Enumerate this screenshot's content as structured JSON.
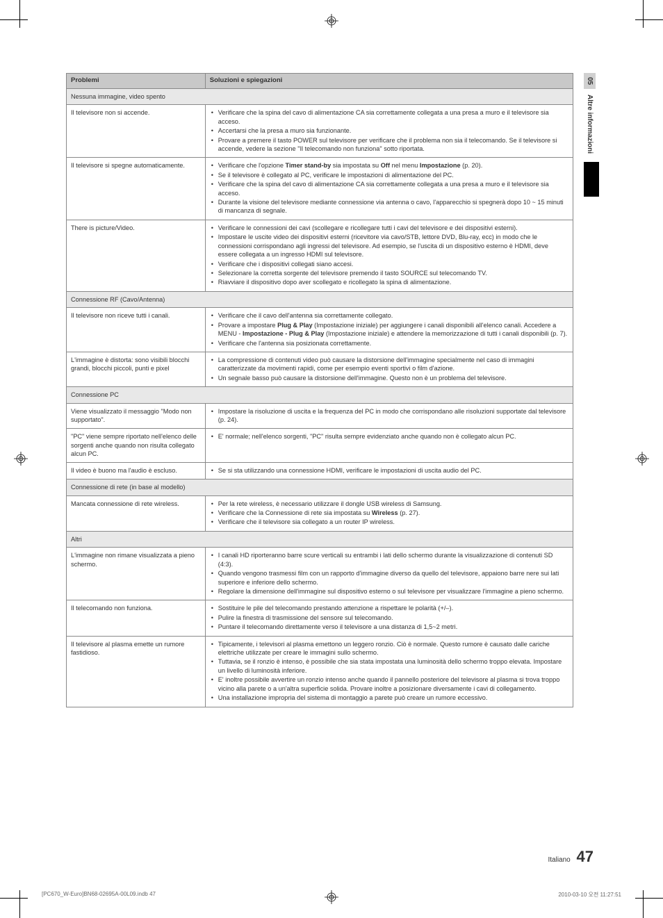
{
  "sidebar": {
    "num": "05",
    "label": "Altre informazioni"
  },
  "headers": {
    "col1": "Problemi",
    "col2": "Soluzioni e spiegazioni"
  },
  "sections": [
    {
      "title": "Nessuna immagine, video spento",
      "rows": [
        {
          "p": "Il televisore non si accende.",
          "s": [
            "Verificare che la spina del cavo di alimentazione CA sia correttamente collegata a una presa a muro e il televisore sia acceso.",
            "Accertarsi che la presa a muro sia funzionante.",
            "Provare a premere il tasto POWER sul televisore per verificare che il problema non sia il telecomando. Se il televisore si accende, vedere la sezione \"Il telecomando non funziona\" sotto riportata."
          ]
        },
        {
          "p": "Il televisore si spegne automaticamente.",
          "s": [
            "Verificare che l'opzione <b>Timer stand-by</b> sia impostata su <b>Off</b> nel menu <b>Impostazione</b> (p. 20).",
            "Se il televisore è collegato al PC, verificare le impostazioni di alimentazione del PC.",
            "Verificare che la spina del cavo di alimentazione CA sia correttamente collegata a una presa a muro e il televisore sia acceso.",
            "Durante la visione del televisore mediante connessione via antenna o cavo, l'apparecchio si spegnerà dopo 10 ~ 15 minuti di mancanza di segnale."
          ]
        },
        {
          "p": "There is picture/Video.",
          "s": [
            "Verificare le connessioni dei cavi (scollegare e ricollegare tutti i cavi del televisore e dei dispositivi esterni).",
            "Impostare le uscite video dei dispositivi esterni (ricevitore via cavo/STB, lettore DVD, Blu-ray, ecc) in modo che le connessioni corrispondano agli ingressi del televisore. Ad esempio, se l'uscita di un dispositivo esterno è HDMI, deve essere collegata a un ingresso HDMI sul televisore.",
            "Verificare che i dispositivi collegati siano accesi.",
            "Selezionare la corretta sorgente del televisore premendo il tasto SOURCE sul telecomando TV.",
            "Riavviare il dispositivo dopo aver scollegato e ricollegato la spina di alimentazione."
          ]
        }
      ]
    },
    {
      "title": "Connessione RF (Cavo/Antenna)",
      "rows": [
        {
          "p": "Il televisore non riceve tutti i canali.",
          "s": [
            "Verificare che il cavo dell'antenna sia correttamente collegato.",
            "Provare a impostare <b>Plug & Play</b> (Impostazione iniziale) per aggiungere i canali disponibili all'elenco canali. Accedere a MENU - <b>Impostazione - Plug & Play</b> (Impostazione iniziale) e attendere la memorizzazione di tutti i canali disponibili (p. 7).",
            "Verificare che l'antenna sia posizionata correttamente."
          ]
        },
        {
          "p": "L'immagine è distorta: sono visibili blocchi grandi, blocchi piccoli, punti e pixel",
          "s": [
            "La compressione di contenuti video può causare la distorsione dell'immagine specialmente nel caso di immagini caratterizzate da movimenti rapidi, come per esempio eventi sportivi o film d'azione.",
            "Un segnale basso può causare la distorsione dell'immagine. Questo non è un problema del televisore."
          ]
        }
      ]
    },
    {
      "title": "Connessione PC",
      "rows": [
        {
          "p": "Viene visualizzato il messaggio \"Modo non supportato\".",
          "s": [
            "Impostare la risoluzione di uscita e la frequenza del PC in modo che corrispondano alle risoluzioni supportate dal televisore (p. 24)."
          ]
        },
        {
          "p": "\"PC\" viene sempre riportato nell'elenco delle sorgenti anche quando non risulta collegato alcun PC.",
          "s": [
            "E' normale; nell'elenco sorgenti, \"PC\" risulta sempre evidenziato anche quando non è collegato alcun PC."
          ]
        },
        {
          "p": "Il video è buono ma l'audio è escluso.",
          "s": [
            "Se si sta utilizzando una connessione HDMI, verificare le impostazioni di uscita audio del PC."
          ]
        }
      ]
    },
    {
      "title": "Connessione di rete (in base al modello)",
      "rows": [
        {
          "p": "Mancata connessione di rete wireless.",
          "s": [
            "Per la rete wireless, è necessario utilizzare il dongle USB wireless di Samsung.",
            "Verificare che la Connessione di rete sia impostata su <b>Wireless</b> (p. 27).",
            "Verificare che il televisore sia collegato a un router IP wireless."
          ]
        }
      ]
    },
    {
      "title": "Altri",
      "rows": [
        {
          "p": "L'immagine non rimane visualizzata a pieno schermo.",
          "s": [
            "I canali HD riporteranno barre scure verticali su entrambi i lati dello schermo durante la visualizzazione di contenuti SD (4:3).",
            "Quando vengono trasmessi film con un rapporto d'immagine diverso da quello del televisore, appaiono barre nere sui lati superiore e inferiore dello schermo.",
            "Regolare la dimensione dell'immagine sul dispositivo esterno o sul televisore per visualizzare l'immagine a pieno schermo."
          ]
        },
        {
          "p": "Il telecomando non funziona.",
          "s": [
            "Sostituire le pile del telecomando prestando attenzione a rispettare le polarità (+/–).",
            "Pulire la finestra di trasmissione del sensore sul telecomando.",
            "Puntare il telecomando direttamente verso il televisore a una distanza di 1,5~2 metri."
          ]
        },
        {
          "p": "Il televisore al plasma emette un rumore fastidioso.",
          "s": [
            "Tipicamente, i televisori al plasma emettono un leggero ronzio. Ciò è normale. Questo rumore è causato dalle cariche elettriche utilizzate per creare le immagini sullo schermo.",
            "Tuttavia, se il ronzio è intenso, è possibile che sia stata impostata una luminosità dello schermo troppo elevata. Impostare un livello di luminosità inferiore.",
            "E' inoltre possibile avvertire un ronzio intenso anche quando il pannello posteriore del televisore al plasma si trova troppo vicino alla parete o a un'altra superficie solida. Provare inoltre a posizionare diversamente i cavi di collegamento.",
            "Una installazione impropria del sistema di montaggio a parete può creare un rumore eccessivo."
          ]
        }
      ]
    }
  ],
  "footer": {
    "lang": "Italiano",
    "page": "47"
  },
  "printinfo": {
    "left": "[PC670_W-Euro]BN68-02695A-00L09.indb   47",
    "right": "2010-03-10   오전 11:27:51"
  }
}
